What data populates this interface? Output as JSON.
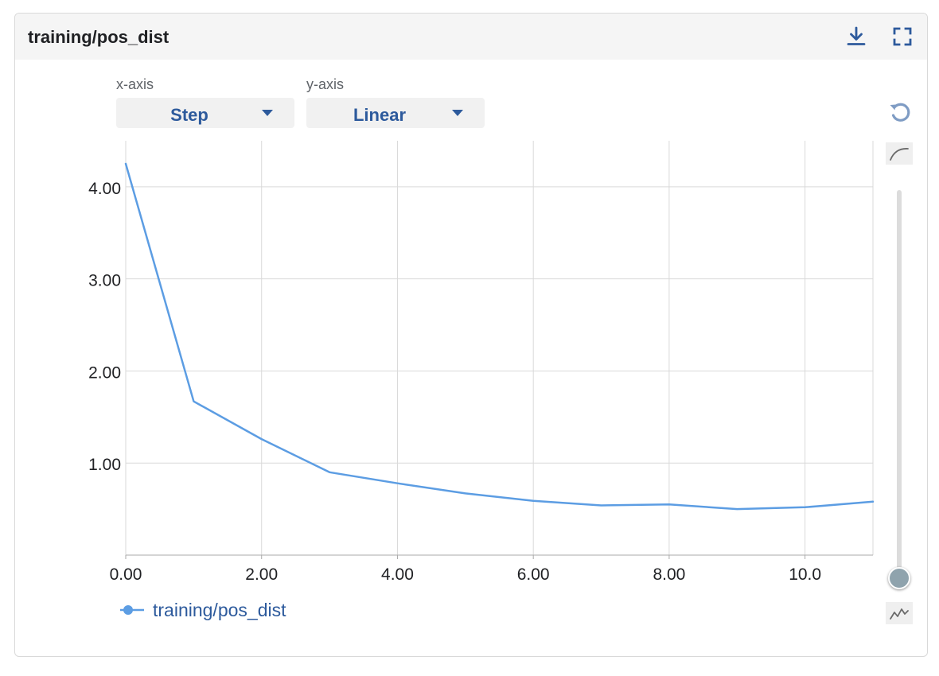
{
  "panel": {
    "title": "training/pos_dist"
  },
  "icons": {
    "download": "download-icon",
    "fullscreen": "fullscreen-icon",
    "reset": "reset-zoom-icon",
    "smooth": "smoothing-curve-icon",
    "raw": "raw-data-icon",
    "caret": "caret-down-icon"
  },
  "controls": {
    "x_axis": {
      "label": "x-axis",
      "value": "Step"
    },
    "y_axis": {
      "label": "y-axis",
      "value": "Linear"
    }
  },
  "smoothing": {
    "level": 0
  },
  "colors": {
    "series": "#5c9de3",
    "grid": "#d9d9d9",
    "text": "#202124",
    "accent": "#2d5a9c"
  },
  "legend": {
    "label": "training/pos_dist"
  },
  "chart_data": {
    "type": "line",
    "title": "",
    "xlabel": "",
    "ylabel": "",
    "xlim": [
      0,
      11
    ],
    "ylim": [
      0,
      4.5
    ],
    "grid": true,
    "legend_position": "bottom-left",
    "x_ticks": [
      0,
      2,
      4,
      6,
      8,
      10
    ],
    "x_tick_labels": [
      "0.00",
      "2.00",
      "4.00",
      "6.00",
      "8.00",
      "10.0"
    ],
    "y_ticks": [
      1,
      2,
      3,
      4
    ],
    "y_tick_labels": [
      "1.00",
      "2.00",
      "3.00",
      "4.00"
    ],
    "series": [
      {
        "name": "training/pos_dist",
        "x": [
          0,
          1,
          2,
          3,
          4,
          5,
          6,
          7,
          8,
          9,
          10,
          11
        ],
        "y": [
          4.25,
          1.67,
          1.26,
          0.9,
          0.78,
          0.67,
          0.59,
          0.54,
          0.55,
          0.5,
          0.52,
          0.58
        ]
      }
    ]
  }
}
